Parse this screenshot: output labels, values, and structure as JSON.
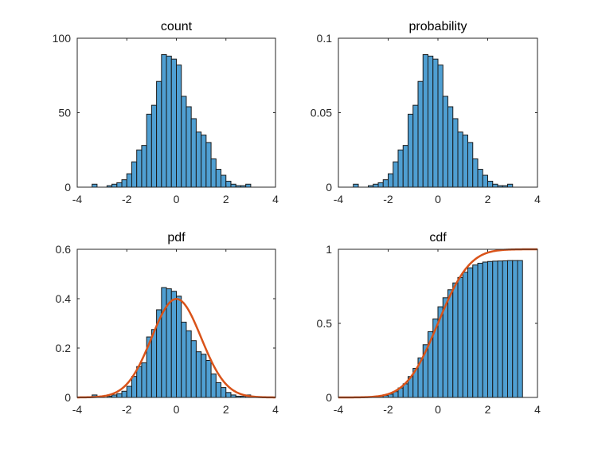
{
  "colors": {
    "bar_fill": "#4f9fd2",
    "curve": "#d95319",
    "axis": "#262626"
  },
  "chart_data": [
    {
      "type": "bar",
      "title": "count",
      "xlim": [
        -4,
        4
      ],
      "ylim": [
        0,
        100
      ],
      "xticks": [
        -4,
        -2,
        0,
        2,
        4
      ],
      "yticks": [
        0,
        50,
        100
      ],
      "bin_edges": [
        -3.6,
        -3.4,
        -3.2,
        -3.0,
        -2.8,
        -2.6,
        -2.4,
        -2.2,
        -2.0,
        -1.8,
        -1.6,
        -1.4,
        -1.2,
        -1.0,
        -0.8,
        -0.6,
        -0.4,
        -0.2,
        0.0,
        0.2,
        0.4,
        0.6,
        0.8,
        1.0,
        1.2,
        1.4,
        1.6,
        1.8,
        2.0,
        2.2,
        2.4,
        2.6,
        2.8,
        3.0,
        3.2,
        3.4
      ],
      "values": [
        0,
        2,
        0,
        0,
        1,
        2,
        3,
        5,
        9,
        17,
        25,
        28,
        49,
        55,
        71,
        89,
        88,
        86,
        82,
        61,
        54,
        46,
        37,
        35,
        30,
        19,
        12,
        8,
        4,
        2,
        1,
        1,
        2,
        0,
        0
      ]
    },
    {
      "type": "bar",
      "title": "probability",
      "xlim": [
        -4,
        4
      ],
      "ylim": [
        0,
        0.1
      ],
      "xticks": [
        -4,
        -2,
        0,
        2,
        4
      ],
      "yticks": [
        0,
        0.05,
        0.1
      ],
      "bin_edges": [
        -3.6,
        -3.4,
        -3.2,
        -3.0,
        -2.8,
        -2.6,
        -2.4,
        -2.2,
        -2.0,
        -1.8,
        -1.6,
        -1.4,
        -1.2,
        -1.0,
        -0.8,
        -0.6,
        -0.4,
        -0.2,
        0.0,
        0.2,
        0.4,
        0.6,
        0.8,
        1.0,
        1.2,
        1.4,
        1.6,
        1.8,
        2.0,
        2.2,
        2.4,
        2.6,
        2.8,
        3.0,
        3.2,
        3.4
      ],
      "values": [
        0,
        0.002,
        0,
        0,
        0.001,
        0.002,
        0.003,
        0.005,
        0.009,
        0.017,
        0.025,
        0.028,
        0.049,
        0.055,
        0.071,
        0.089,
        0.088,
        0.086,
        0.082,
        0.061,
        0.054,
        0.046,
        0.037,
        0.035,
        0.03,
        0.019,
        0.012,
        0.008,
        0.004,
        0.002,
        0.001,
        0.001,
        0.002,
        0,
        0
      ]
    },
    {
      "type": "bar",
      "title": "pdf",
      "xlim": [
        -4,
        4
      ],
      "ylim": [
        0,
        0.6
      ],
      "xticks": [
        -4,
        -2,
        0,
        2,
        4
      ],
      "yticks": [
        0,
        0.2,
        0.4,
        0.6
      ],
      "bin_edges": [
        -3.6,
        -3.4,
        -3.2,
        -3.0,
        -2.8,
        -2.6,
        -2.4,
        -2.2,
        -2.0,
        -1.8,
        -1.6,
        -1.4,
        -1.2,
        -1.0,
        -0.8,
        -0.6,
        -0.4,
        -0.2,
        0.0,
        0.2,
        0.4,
        0.6,
        0.8,
        1.0,
        1.2,
        1.4,
        1.6,
        1.8,
        2.0,
        2.2,
        2.4,
        2.6,
        2.8,
        3.0,
        3.2,
        3.4
      ],
      "values": [
        0,
        0.01,
        0,
        0,
        0.005,
        0.01,
        0.015,
        0.025,
        0.045,
        0.085,
        0.125,
        0.14,
        0.245,
        0.275,
        0.355,
        0.445,
        0.44,
        0.43,
        0.41,
        0.305,
        0.27,
        0.23,
        0.185,
        0.175,
        0.15,
        0.095,
        0.06,
        0.04,
        0.02,
        0.01,
        0.005,
        0.005,
        0.01,
        0,
        0
      ],
      "curve": {
        "name": "",
        "kind": "normal-pdf",
        "mu": 0,
        "sigma": 1
      }
    },
    {
      "type": "bar",
      "title": "cdf",
      "xlim": [
        -4,
        4
      ],
      "ylim": [
        0,
        1
      ],
      "xticks": [
        -4,
        -2,
        0,
        2,
        4
      ],
      "yticks": [
        0,
        0.5,
        1
      ],
      "bin_edges": [
        -3.6,
        -3.4,
        -3.2,
        -3.0,
        -2.8,
        -2.6,
        -2.4,
        -2.2,
        -2.0,
        -1.8,
        -1.6,
        -1.4,
        -1.2,
        -1.0,
        -0.8,
        -0.6,
        -0.4,
        -0.2,
        0.0,
        0.2,
        0.4,
        0.6,
        0.8,
        1.0,
        1.2,
        1.4,
        1.6,
        1.8,
        2.0,
        2.2,
        2.4,
        2.6,
        2.8,
        3.0,
        3.2,
        3.4
      ],
      "values": [
        0,
        0.002,
        0.002,
        0.002,
        0.003,
        0.005,
        0.008,
        0.013,
        0.022,
        0.039,
        0.064,
        0.092,
        0.141,
        0.196,
        0.267,
        0.356,
        0.444,
        0.53,
        0.612,
        0.673,
        0.727,
        0.773,
        0.81,
        0.845,
        0.875,
        0.894,
        0.906,
        0.914,
        0.918,
        0.92,
        0.921,
        0.922,
        0.924,
        0.924,
        0.924
      ],
      "curve": {
        "name": "",
        "kind": "normal-cdf",
        "mu": 0,
        "sigma": 1
      }
    }
  ]
}
